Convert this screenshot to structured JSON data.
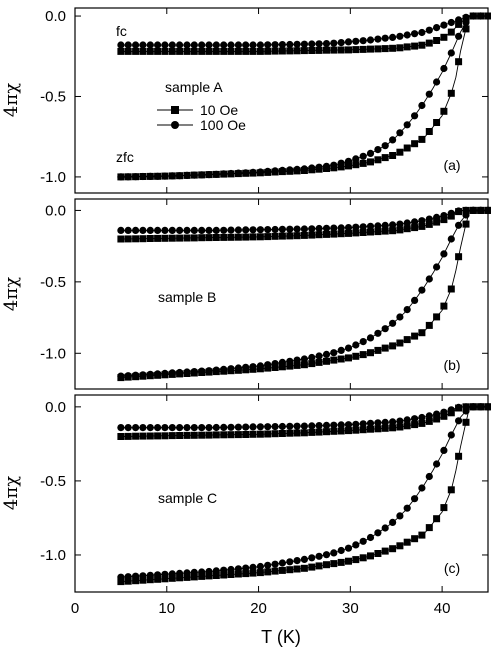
{
  "chart_data": [
    {
      "type": "scatter",
      "panel_label": "(a)",
      "sample_label": "sample A",
      "ylabel": "4πχ",
      "xlim": [
        0,
        45
      ],
      "ylim": [
        -1.1,
        0.05
      ],
      "yticks": [
        0.0,
        -0.5,
        -1.0
      ],
      "ytick_labels": [
        "0.0",
        "-0.5",
        "-1.0"
      ],
      "annotations": [
        "fc",
        "zfc"
      ],
      "legend": {
        "entries": [
          {
            "name": "10 Oe",
            "marker": "square"
          },
          {
            "name": "100 Oe",
            "marker": "circle"
          }
        ]
      },
      "series": [
        {
          "name": "10 Oe fc",
          "marker": "square",
          "x": [
            5,
            10,
            15,
            20,
            25,
            30,
            35,
            38,
            40,
            41,
            42,
            43,
            44,
            45
          ],
          "y": [
            -0.22,
            -0.22,
            -0.22,
            -0.22,
            -0.215,
            -0.21,
            -0.2,
            -0.18,
            -0.14,
            -0.1,
            -0.04,
            0.0,
            0.0,
            0.0
          ]
        },
        {
          "name": "100 Oe fc",
          "marker": "circle",
          "x": [
            5,
            10,
            15,
            20,
            25,
            28,
            30,
            32,
            35,
            38,
            40,
            41,
            42,
            43,
            44,
            45
          ],
          "y": [
            -0.18,
            -0.18,
            -0.18,
            -0.18,
            -0.175,
            -0.17,
            -0.16,
            -0.15,
            -0.13,
            -0.1,
            -0.06,
            -0.04,
            -0.02,
            0.0,
            0.0,
            0.0
          ]
        },
        {
          "name": "10 Oe zfc",
          "marker": "square",
          "x": [
            5,
            10,
            15,
            20,
            25,
            28,
            30,
            32,
            35,
            38,
            40,
            41,
            41.5,
            42,
            42.5,
            43,
            44,
            45
          ],
          "y": [
            -1.0,
            -0.995,
            -0.985,
            -0.975,
            -0.96,
            -0.945,
            -0.93,
            -0.91,
            -0.86,
            -0.76,
            -0.62,
            -0.48,
            -0.38,
            -0.22,
            -0.1,
            0.0,
            0.0,
            0.0
          ]
        },
        {
          "name": "100 Oe zfc",
          "marker": "circle",
          "x": [
            5,
            10,
            15,
            20,
            25,
            28,
            30,
            32,
            34,
            35,
            36,
            37,
            38,
            39,
            40,
            41,
            42,
            43,
            44,
            45
          ],
          "y": [
            -1.0,
            -0.995,
            -0.985,
            -0.97,
            -0.95,
            -0.93,
            -0.9,
            -0.86,
            -0.8,
            -0.75,
            -0.69,
            -0.62,
            -0.54,
            -0.45,
            -0.35,
            -0.23,
            -0.1,
            0.0,
            0.0,
            0.0
          ]
        }
      ]
    },
    {
      "type": "scatter",
      "panel_label": "(b)",
      "sample_label": "sample B",
      "ylabel": "4πχ",
      "xlim": [
        0,
        45
      ],
      "ylim": [
        -1.25,
        0.08
      ],
      "yticks": [
        0.0,
        -0.5,
        -1.0
      ],
      "ytick_labels": [
        "0.0",
        "-0.5",
        "-1.0"
      ],
      "series": [
        {
          "name": "10 Oe fc",
          "marker": "square",
          "x": [
            5,
            10,
            15,
            20,
            25,
            30,
            35,
            38,
            40,
            41,
            42,
            43,
            44,
            45
          ],
          "y": [
            -0.2,
            -0.195,
            -0.19,
            -0.185,
            -0.175,
            -0.16,
            -0.14,
            -0.11,
            -0.07,
            -0.04,
            0.0,
            0.0,
            0.0,
            0.0
          ]
        },
        {
          "name": "100 Oe fc",
          "marker": "circle",
          "x": [
            5,
            10,
            15,
            20,
            25,
            30,
            35,
            38,
            40,
            41,
            42,
            43,
            44,
            45
          ],
          "y": [
            -0.14,
            -0.14,
            -0.14,
            -0.135,
            -0.13,
            -0.12,
            -0.1,
            -0.07,
            -0.04,
            -0.02,
            0.0,
            0.0,
            0.0,
            0.0
          ]
        },
        {
          "name": "10 Oe zfc",
          "marker": "square",
          "x": [
            5,
            10,
            15,
            20,
            25,
            28,
            30,
            32,
            35,
            38,
            40,
            41,
            41.5,
            42,
            42.5,
            43,
            44,
            45
          ],
          "y": [
            -1.17,
            -1.15,
            -1.13,
            -1.11,
            -1.08,
            -1.05,
            -1.03,
            -1.0,
            -0.94,
            -0.85,
            -0.7,
            -0.55,
            -0.42,
            -0.26,
            -0.12,
            0.0,
            0.0,
            0.0
          ]
        },
        {
          "name": "100 Oe zfc",
          "marker": "circle",
          "x": [
            5,
            10,
            15,
            20,
            25,
            28,
            30,
            32,
            34,
            35,
            36,
            37,
            38,
            39,
            40,
            41,
            42,
            43,
            44,
            45
          ],
          "y": [
            -1.16,
            -1.14,
            -1.12,
            -1.09,
            -1.04,
            -1.0,
            -0.96,
            -0.9,
            -0.82,
            -0.77,
            -0.71,
            -0.63,
            -0.54,
            -0.44,
            -0.33,
            -0.2,
            -0.08,
            0.0,
            0.0,
            0.0
          ]
        }
      ]
    },
    {
      "type": "scatter",
      "panel_label": "(c)",
      "sample_label": "sample C",
      "ylabel": "4πχ",
      "xlabel": "T (K)",
      "xlim": [
        0,
        45
      ],
      "ylim": [
        -1.25,
        0.08
      ],
      "xticks": [
        0,
        10,
        20,
        30,
        40
      ],
      "xtick_labels": [
        "0",
        "10",
        "20",
        "30",
        "40"
      ],
      "yticks": [
        0.0,
        -0.5,
        -1.0
      ],
      "ytick_labels": [
        "0.0",
        "-0.5",
        "-1.0"
      ],
      "series": [
        {
          "name": "10 Oe fc",
          "marker": "square",
          "x": [
            5,
            10,
            15,
            20,
            25,
            30,
            35,
            38,
            40,
            41,
            42,
            43,
            44,
            45
          ],
          "y": [
            -0.2,
            -0.195,
            -0.19,
            -0.185,
            -0.175,
            -0.16,
            -0.14,
            -0.11,
            -0.07,
            -0.04,
            0.0,
            0.0,
            0.0,
            0.0
          ]
        },
        {
          "name": "100 Oe fc",
          "marker": "circle",
          "x": [
            5,
            10,
            15,
            20,
            25,
            30,
            35,
            38,
            40,
            41,
            42,
            43,
            44,
            45
          ],
          "y": [
            -0.14,
            -0.14,
            -0.14,
            -0.135,
            -0.13,
            -0.12,
            -0.1,
            -0.07,
            -0.04,
            -0.02,
            0.0,
            0.0,
            0.0,
            0.0
          ]
        },
        {
          "name": "10 Oe zfc",
          "marker": "square",
          "x": [
            5,
            10,
            15,
            20,
            25,
            28,
            30,
            32,
            35,
            38,
            40,
            41,
            41.5,
            42,
            42.5,
            43,
            44,
            45
          ],
          "y": [
            -1.18,
            -1.16,
            -1.14,
            -1.12,
            -1.09,
            -1.06,
            -1.04,
            -1.01,
            -0.95,
            -0.86,
            -0.71,
            -0.56,
            -0.43,
            -0.27,
            -0.13,
            0.0,
            0.0,
            0.0
          ]
        },
        {
          "name": "100 Oe zfc",
          "marker": "circle",
          "x": [
            5,
            10,
            15,
            20,
            25,
            28,
            30,
            32,
            34,
            35,
            36,
            37,
            38,
            39,
            40,
            41,
            42,
            43,
            44,
            45
          ],
          "y": [
            -1.15,
            -1.13,
            -1.11,
            -1.08,
            -1.03,
            -0.99,
            -0.95,
            -0.89,
            -0.81,
            -0.76,
            -0.7,
            -0.62,
            -0.53,
            -0.43,
            -0.32,
            -0.19,
            -0.07,
            0.0,
            0.0,
            0.0
          ]
        }
      ]
    }
  ]
}
